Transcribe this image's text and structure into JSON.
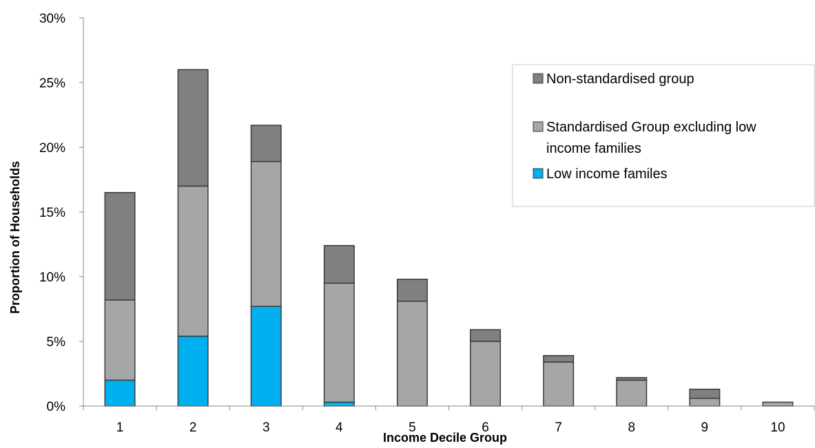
{
  "chart_data": {
    "type": "bar",
    "stacked": true,
    "title": "",
    "xlabel": "Income Decile Group",
    "ylabel": "Proportion of Households",
    "categories": [
      "1",
      "2",
      "3",
      "4",
      "5",
      "6",
      "7",
      "8",
      "9",
      "10"
    ],
    "ylim": [
      0,
      30
    ],
    "y_ticks": [
      0,
      5,
      10,
      15,
      20,
      25,
      30
    ],
    "y_tick_labels": [
      "0%",
      "5%",
      "10%",
      "15%",
      "20%",
      "25%",
      "30%"
    ],
    "grid": false,
    "legend_position": "top-right",
    "series": [
      {
        "name": "Low income familes",
        "color": "#00B0F0",
        "values": [
          2.0,
          5.4,
          7.7,
          0.3,
          0,
          0,
          0,
          0,
          0,
          0
        ]
      },
      {
        "name": "Standardised Group excluding low income families",
        "legend_lines": [
          "Standardised Group excluding low",
          "income families"
        ],
        "color": "#A6A6A6",
        "values": [
          6.2,
          11.6,
          11.2,
          9.2,
          8.1,
          5.0,
          3.4,
          2.0,
          0.6,
          0.3
        ]
      },
      {
        "name": "Non-standardised group",
        "color": "#808080",
        "values": [
          8.3,
          9.0,
          2.8,
          2.9,
          1.7,
          0.9,
          0.5,
          0.2,
          0.7,
          0.0
        ]
      }
    ],
    "legend_order": [
      2,
      1,
      0
    ]
  }
}
